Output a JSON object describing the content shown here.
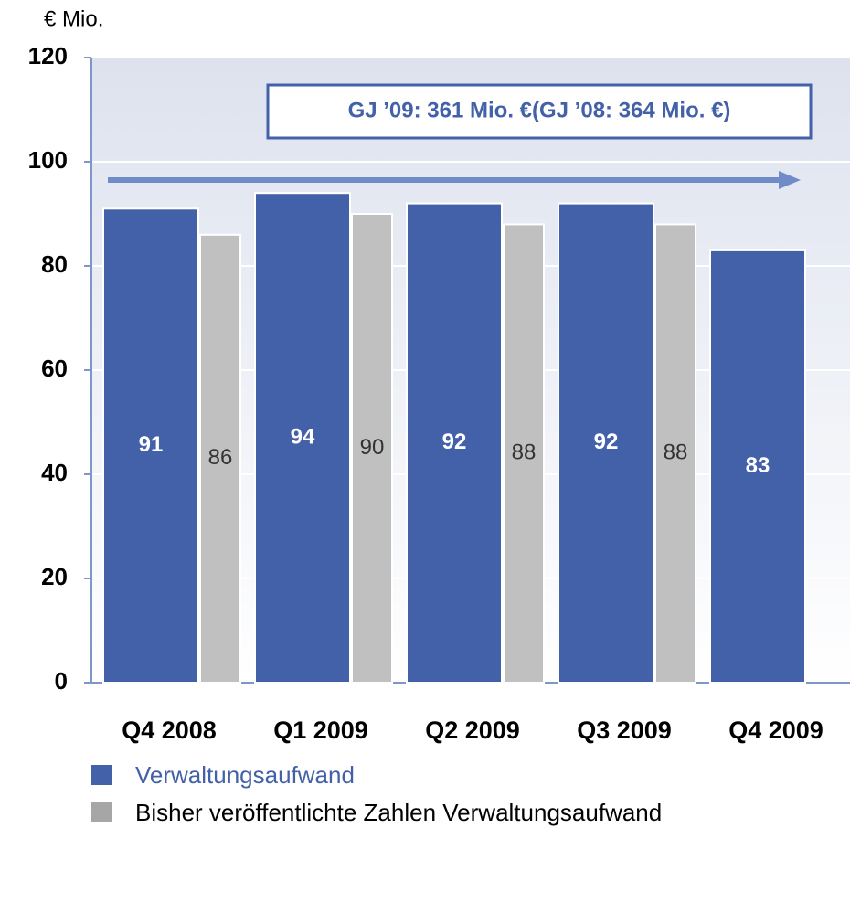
{
  "chart_data": {
    "type": "bar",
    "unit_label": "€ Mio.",
    "annotation": "GJ ’09: 361 Mio. €(GJ ’08: 364 Mio. €)",
    "categories": [
      "Q4 2008",
      "Q1 2009",
      "Q2 2009",
      "Q3 2009",
      "Q4 2009"
    ],
    "series": [
      {
        "name": "Verwaltungsaufwand",
        "color": "#4361a8",
        "values": [
          91,
          94,
          92,
          92,
          83
        ]
      },
      {
        "name": "Bisher veröffentlichte Zahlen Verwaltungsaufwand",
        "color": "#c0c0c0",
        "values": [
          86,
          90,
          88,
          88,
          null
        ]
      }
    ],
    "ylim": [
      0,
      120
    ],
    "yticks": [
      0,
      20,
      40,
      60,
      80,
      100,
      120
    ],
    "grid": true
  }
}
